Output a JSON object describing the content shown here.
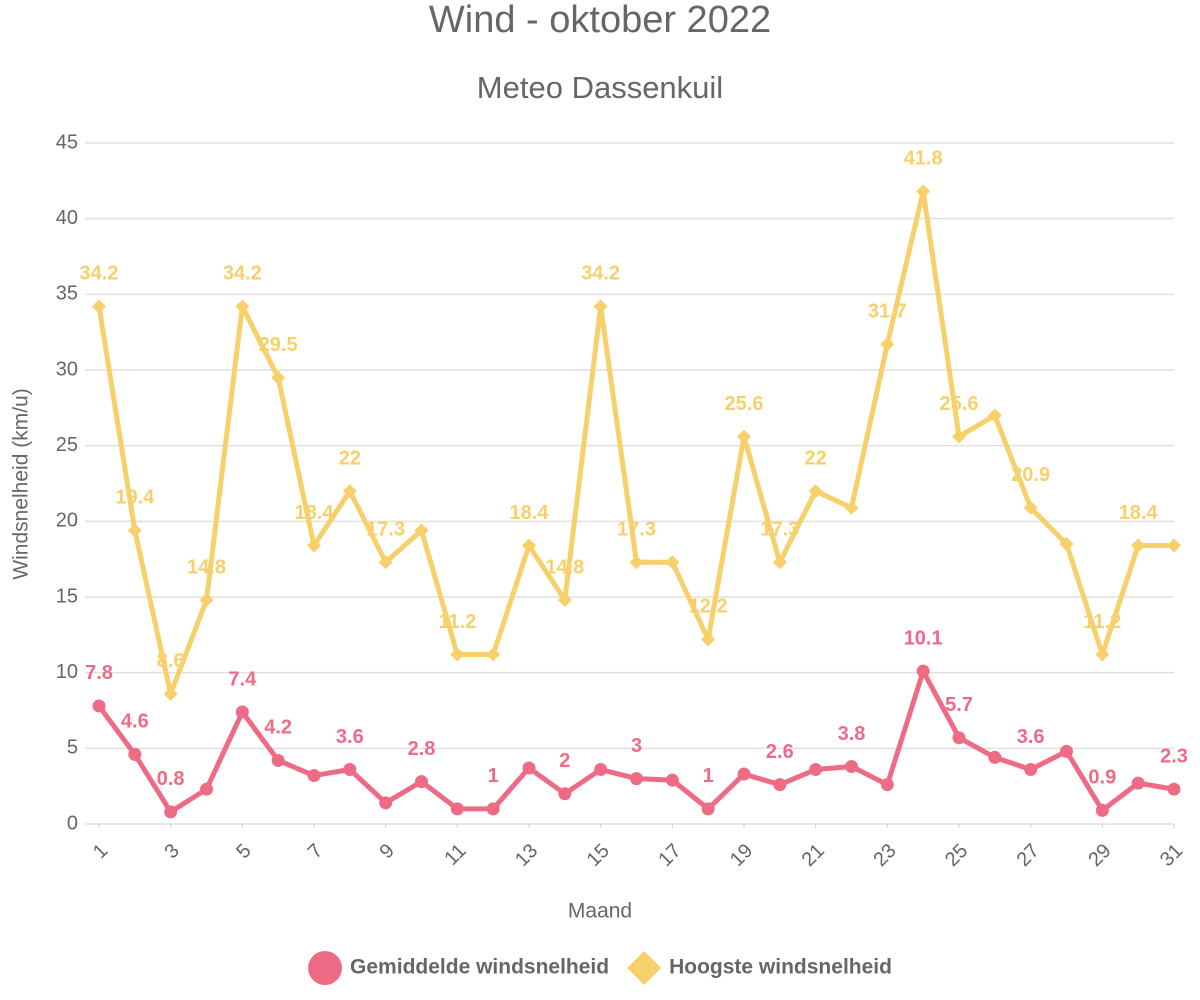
{
  "chart_data": {
    "type": "line",
    "title": "Wind - oktober 2022",
    "subtitle": "Meteo Dassenkuil",
    "x_label": "Maand",
    "y_label": "Windsnelheid (km/u)",
    "x": [
      1,
      2,
      3,
      4,
      5,
      6,
      7,
      8,
      9,
      10,
      11,
      12,
      13,
      14,
      15,
      16,
      17,
      18,
      19,
      20,
      21,
      22,
      23,
      24,
      25,
      26,
      27,
      28,
      29,
      30,
      31
    ],
    "xlim": [
      1,
      31
    ],
    "xticks": [
      1,
      3,
      5,
      7,
      9,
      11,
      13,
      15,
      17,
      19,
      21,
      23,
      25,
      27,
      29,
      31
    ],
    "ylim": [
      0,
      45
    ],
    "yticks": [
      0,
      5,
      10,
      15,
      20,
      25,
      30,
      35,
      40,
      45
    ],
    "grid": true,
    "legend": "bottom",
    "series": [
      {
        "name": "Gemiddelde windsnelheid",
        "color": "#ee6b85",
        "marker": "circle",
        "values": [
          7.8,
          4.6,
          0.8,
          2.3,
          7.4,
          4.2,
          3.2,
          3.6,
          1.4,
          2.8,
          1.0,
          1.0,
          3.7,
          2.0,
          3.6,
          3.0,
          2.9,
          1.0,
          3.3,
          2.6,
          3.6,
          3.8,
          2.6,
          10.1,
          5.7,
          4.4,
          3.6,
          4.8,
          0.9,
          2.7,
          2.3
        ],
        "value_labels": [
          "7.8",
          "4.6",
          "0.8",
          null,
          "7.4",
          "4.2",
          null,
          "3.6",
          null,
          "2.8",
          null,
          "1",
          null,
          "2",
          null,
          "3",
          null,
          "1",
          null,
          "2.6",
          null,
          "3.8",
          null,
          "10.1",
          "5.7",
          null,
          "3.6",
          null,
          "0.9",
          null,
          "2.3"
        ]
      },
      {
        "name": "Hoogste windsnelheid",
        "color": "#f7d06b",
        "marker": "diamond",
        "values": [
          34.2,
          19.4,
          8.6,
          14.8,
          34.2,
          29.5,
          18.4,
          22,
          17.3,
          19.4,
          11.2,
          11.2,
          18.4,
          14.8,
          34.2,
          17.3,
          17.3,
          12.2,
          25.6,
          17.3,
          22,
          20.9,
          31.7,
          41.8,
          25.6,
          27.0,
          20.9,
          18.5,
          11.2,
          18.4,
          18.4
        ],
        "value_labels": [
          "34.2",
          "19.4",
          "8.6",
          "14.8",
          "34.2",
          "29.5",
          "18.4",
          "22",
          "17.3",
          null,
          "11.2",
          null,
          "18.4",
          "14.8",
          "34.2",
          "17.3",
          null,
          "12.2",
          "25.6",
          "17.3",
          "22",
          null,
          "31.7",
          "41.8",
          "25.6",
          null,
          "20.9",
          null,
          "11.2",
          "18.4",
          null
        ]
      }
    ]
  }
}
